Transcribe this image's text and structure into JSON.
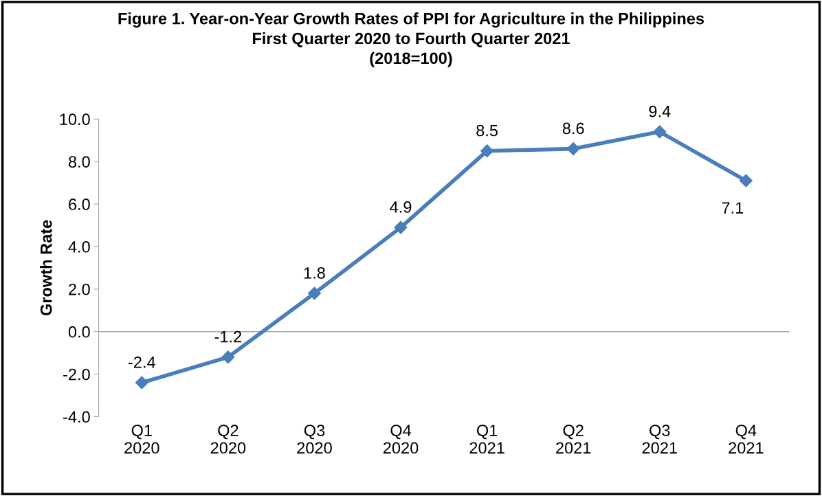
{
  "chart_data": {
    "type": "line",
    "title": "Figure 1. Year-on-Year Growth Rates of PPI for Agriculture in the Philippines\nFirst Quarter 2020 to Fourth Quarter 2021\n(2018=100)",
    "ylabel": "Growth Rate",
    "categories": [
      "Q1\n2020",
      "Q2\n2020",
      "Q3\n2020",
      "Q4\n2020",
      "Q1\n2021",
      "Q2\n2021",
      "Q3\n2021",
      "Q4\n2021"
    ],
    "series": [
      {
        "color": "#4a7ebb",
        "values": [
          -2.4,
          -1.2,
          1.8,
          4.9,
          8.5,
          8.6,
          9.4,
          7.1
        ]
      }
    ],
    "ylim": [
      -4,
      10
    ],
    "yticks": [
      {
        "value": -4,
        "label": "-4.0"
      },
      {
        "value": -2,
        "label": "-2.0"
      },
      {
        "value": 0,
        "label": "0.0"
      },
      {
        "value": 2,
        "label": "2.0"
      },
      {
        "value": 4,
        "label": "4.0"
      },
      {
        "value": 6,
        "label": "6.0"
      },
      {
        "value": 8,
        "label": "8.0"
      },
      {
        "value": 10,
        "label": "10.0"
      }
    ],
    "ref_lines": [
      {
        "axis": "y",
        "value": 0,
        "color": "#a6a6a6"
      }
    ],
    "data_labels": true,
    "marker": "diamond",
    "line_style": "solid",
    "grid": false,
    "legend": false
  }
}
